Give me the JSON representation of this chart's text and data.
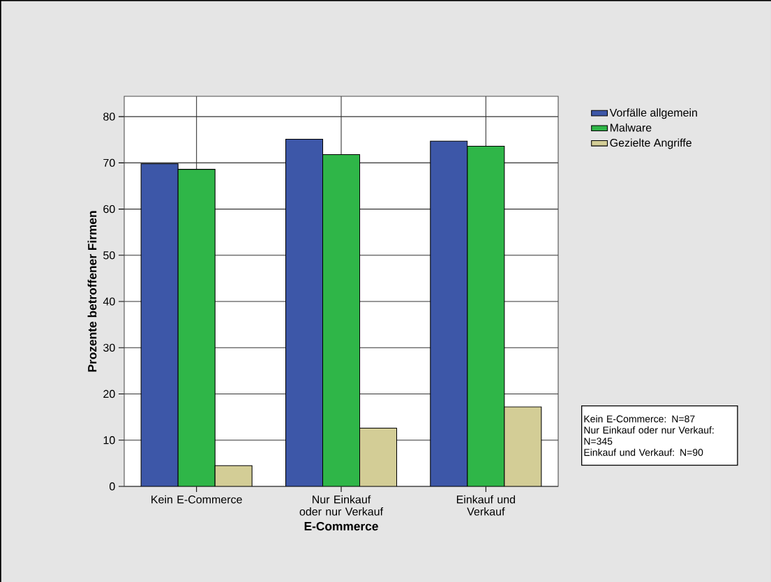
{
  "chart_data": {
    "type": "bar",
    "xlabel": "E-Commerce",
    "ylabel": "Prozente betroffener Firmen",
    "categories": [
      "Kein E-Commerce",
      "Nur Einkauf oder nur Verkauf",
      "Einkauf und Verkauf"
    ],
    "series": [
      {
        "name": "Vorfälle allgemein",
        "color": "#3d57a8",
        "values": [
          69.8,
          75.1,
          74.7
        ]
      },
      {
        "name": "Malware",
        "color": "#2fb648",
        "values": [
          68.6,
          71.8,
          73.6
        ]
      },
      {
        "name": "Gezielte Angriffe",
        "color": "#d3cd96",
        "values": [
          4.5,
          12.6,
          17.2
        ]
      }
    ],
    "ylim": [
      0,
      84.4
    ],
    "yticks": [
      0,
      10,
      20,
      30,
      40,
      50,
      60,
      70,
      80
    ],
    "grid": true,
    "legend": "top right",
    "annotations": [
      "Kein E-Commerce: N=87",
      "Nur Einkauf oder nur Verkauf: N=345",
      "Einkauf und Verkauf: N=90"
    ]
  }
}
